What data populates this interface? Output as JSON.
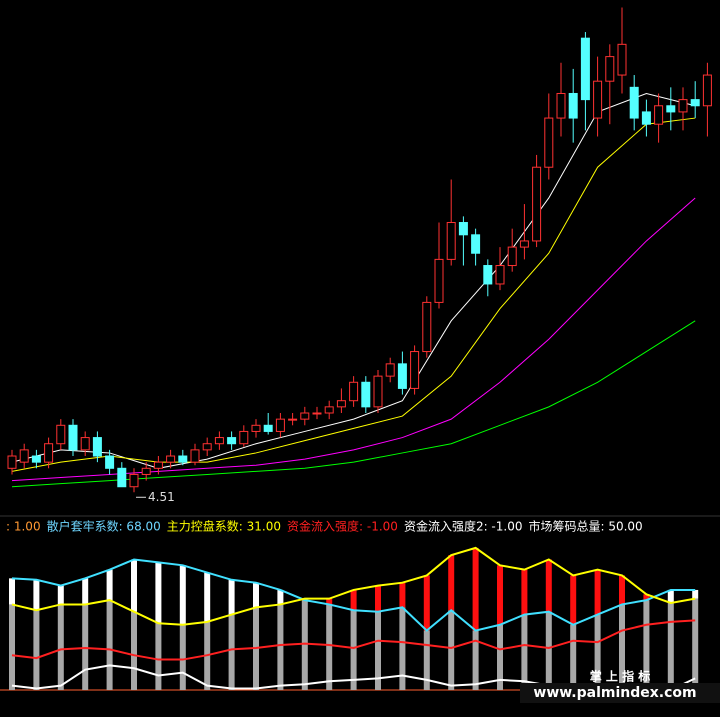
{
  "chart_data": [
    {
      "type": "candlestick",
      "candles": [
        [
          4.9,
          5.1,
          5.2,
          4.8
        ],
        [
          5.0,
          5.2,
          5.3,
          4.9
        ],
        [
          5.1,
          5.0,
          5.2,
          4.9
        ],
        [
          5.0,
          5.3,
          5.4,
          4.9
        ],
        [
          5.3,
          5.6,
          5.7,
          5.2
        ],
        [
          5.6,
          5.2,
          5.7,
          5.1
        ],
        [
          5.2,
          5.4,
          5.5,
          5.1
        ],
        [
          5.4,
          5.1,
          5.5,
          5.0
        ],
        [
          5.1,
          4.9,
          5.2,
          4.8
        ],
        [
          4.9,
          4.6,
          5.0,
          4.6
        ],
        [
          4.6,
          4.8,
          4.9,
          4.51
        ],
        [
          4.8,
          4.9,
          5.0,
          4.7
        ],
        [
          4.9,
          5.0,
          5.1,
          4.8
        ],
        [
          5.0,
          5.1,
          5.2,
          4.9
        ],
        [
          5.1,
          5.0,
          5.2,
          4.95
        ],
        [
          5.0,
          5.2,
          5.3,
          4.95
        ],
        [
          5.2,
          5.3,
          5.4,
          5.1
        ],
        [
          5.3,
          5.4,
          5.5,
          5.2
        ],
        [
          5.4,
          5.3,
          5.5,
          5.2
        ],
        [
          5.3,
          5.5,
          5.6,
          5.25
        ],
        [
          5.5,
          5.6,
          5.7,
          5.4
        ],
        [
          5.6,
          5.5,
          5.8,
          5.45
        ],
        [
          5.5,
          5.7,
          5.8,
          5.4
        ],
        [
          5.7,
          5.7,
          5.8,
          5.6
        ],
        [
          5.7,
          5.8,
          5.9,
          5.6
        ],
        [
          5.8,
          5.8,
          5.9,
          5.7
        ],
        [
          5.8,
          5.9,
          6.0,
          5.7
        ],
        [
          5.9,
          6.0,
          6.2,
          5.8
        ],
        [
          6.0,
          6.3,
          6.4,
          5.9
        ],
        [
          6.3,
          5.9,
          6.4,
          5.8
        ],
        [
          5.9,
          6.4,
          6.5,
          5.8
        ],
        [
          6.4,
          6.6,
          6.7,
          6.3
        ],
        [
          6.6,
          6.2,
          6.8,
          6.1
        ],
        [
          6.2,
          6.8,
          6.9,
          6.1
        ],
        [
          6.8,
          7.6,
          7.7,
          6.7
        ],
        [
          7.6,
          8.3,
          8.9,
          7.5
        ],
        [
          8.3,
          8.9,
          9.6,
          8.2
        ],
        [
          8.9,
          8.7,
          9.0,
          8.2
        ],
        [
          8.7,
          8.4,
          8.8,
          8.2
        ],
        [
          8.2,
          7.9,
          8.3,
          7.7
        ],
        [
          7.9,
          8.2,
          8.5,
          7.8
        ],
        [
          8.2,
          8.5,
          8.8,
          8.1
        ],
        [
          8.5,
          8.6,
          9.2,
          8.3
        ],
        [
          8.6,
          9.8,
          10.0,
          8.5
        ],
        [
          9.8,
          10.6,
          11.0,
          9.6
        ],
        [
          10.6,
          11.0,
          11.5,
          10.3
        ],
        [
          11.0,
          10.6,
          11.4,
          10.2
        ],
        [
          11.9,
          10.9,
          12.0,
          10.4
        ],
        [
          10.6,
          11.2,
          11.6,
          10.3
        ],
        [
          11.2,
          11.6,
          11.8,
          10.5
        ],
        [
          11.3,
          11.8,
          12.4,
          11.0
        ],
        [
          11.1,
          10.6,
          11.3,
          10.4
        ],
        [
          10.7,
          10.5,
          10.9,
          10.3
        ],
        [
          10.5,
          10.8,
          11.0,
          10.2
        ],
        [
          10.8,
          10.7,
          11.1,
          10.4
        ],
        [
          10.7,
          10.9,
          11.1,
          10.4
        ],
        [
          10.9,
          10.8,
          11.2,
          10.6
        ],
        [
          10.8,
          11.3,
          11.5,
          10.3
        ]
      ],
      "up_color": "#ff3232",
      "down_color": "#54ffff",
      "ylim": [
        4.14,
        12.44
      ],
      "ma_x": [
        0,
        4,
        8,
        12,
        16,
        20,
        24,
        28,
        32,
        36,
        40,
        44,
        48,
        52,
        56
      ],
      "series": [
        {
          "color": "#ffffff",
          "values": [
            5.0,
            5.2,
            5.15,
            4.9,
            5.05,
            5.3,
            5.5,
            5.7,
            6.0,
            7.3,
            8.2,
            9.3,
            10.7,
            11.0,
            10.8
          ]
        },
        {
          "color": "#ffff00",
          "values": [
            4.85,
            5.0,
            5.1,
            5.0,
            5.0,
            5.15,
            5.35,
            5.55,
            5.75,
            6.4,
            7.5,
            8.4,
            9.8,
            10.5,
            10.6
          ]
        },
        {
          "color": "#ff00ff",
          "values": [
            4.7,
            4.75,
            4.8,
            4.85,
            4.9,
            4.95,
            5.05,
            5.2,
            5.4,
            5.7,
            6.3,
            7.0,
            7.8,
            8.6,
            9.3
          ]
        },
        {
          "color": "#00ff00",
          "values": [
            4.6,
            4.65,
            4.7,
            4.75,
            4.8,
            4.85,
            4.9,
            5.0,
            5.15,
            5.3,
            5.6,
            5.9,
            6.3,
            6.8,
            7.3
          ]
        }
      ]
    },
    {
      "type": "line",
      "info": [
        {
          "text": ": 1.00",
          "color": "#ff9933"
        },
        {
          "text": "散户套牢系数: 68.00",
          "color": "#6fd6ff"
        },
        {
          "text": "主力控盘系数: 31.00",
          "color": "#ffff00"
        },
        {
          "text": "资金流入强度: -1.00",
          "color": "#ff2020"
        },
        {
          "text": "资金流入强度2: -1.00",
          "color": "#ffffff"
        },
        {
          "text": "市场筹码总量: 50.00",
          "color": "#ffffff"
        }
      ],
      "x": [
        0,
        2,
        4,
        6,
        8,
        10,
        12,
        14,
        16,
        18,
        20,
        22,
        24,
        26,
        28,
        30,
        32,
        34,
        36,
        38,
        40,
        42,
        44,
        46,
        48,
        50,
        52,
        54,
        56
      ],
      "ylim": [
        0,
        100
      ],
      "series": [
        {
          "color": "#40e0ff",
          "values": [
            77,
            76,
            72,
            77,
            83,
            90,
            88,
            86,
            81,
            76,
            74,
            69,
            62,
            59,
            55,
            54,
            57,
            41,
            55,
            41,
            45,
            52,
            54,
            45,
            52,
            59,
            62,
            69,
            69
          ]
        },
        {
          "color": "#ffff00",
          "values": [
            59,
            55,
            59,
            59,
            62,
            54,
            46,
            45,
            47,
            52,
            57,
            59,
            63,
            63,
            69,
            72,
            74,
            79,
            93,
            98,
            86,
            83,
            90,
            79,
            83,
            79,
            66,
            60,
            63
          ]
        },
        {
          "color": "#ff2020",
          "values": [
            24,
            22,
            28,
            29,
            28,
            24,
            21,
            21,
            24,
            28,
            29,
            31,
            32,
            31,
            29,
            34,
            33,
            31,
            29,
            34,
            28,
            31,
            29,
            34,
            33,
            41,
            45,
            47,
            48
          ]
        },
        {
          "color": "#ffffff",
          "values": [
            3,
            1,
            3,
            14,
            17,
            15,
            10,
            12,
            3,
            1,
            1,
            3,
            4,
            6,
            7,
            8,
            10,
            7,
            3,
            4,
            7,
            6,
            3,
            1,
            3,
            4,
            1,
            0,
            8
          ]
        }
      ]
    }
  ],
  "watermark": {
    "title": "掌 上 指 标",
    "site": "www.palmindex.com"
  }
}
